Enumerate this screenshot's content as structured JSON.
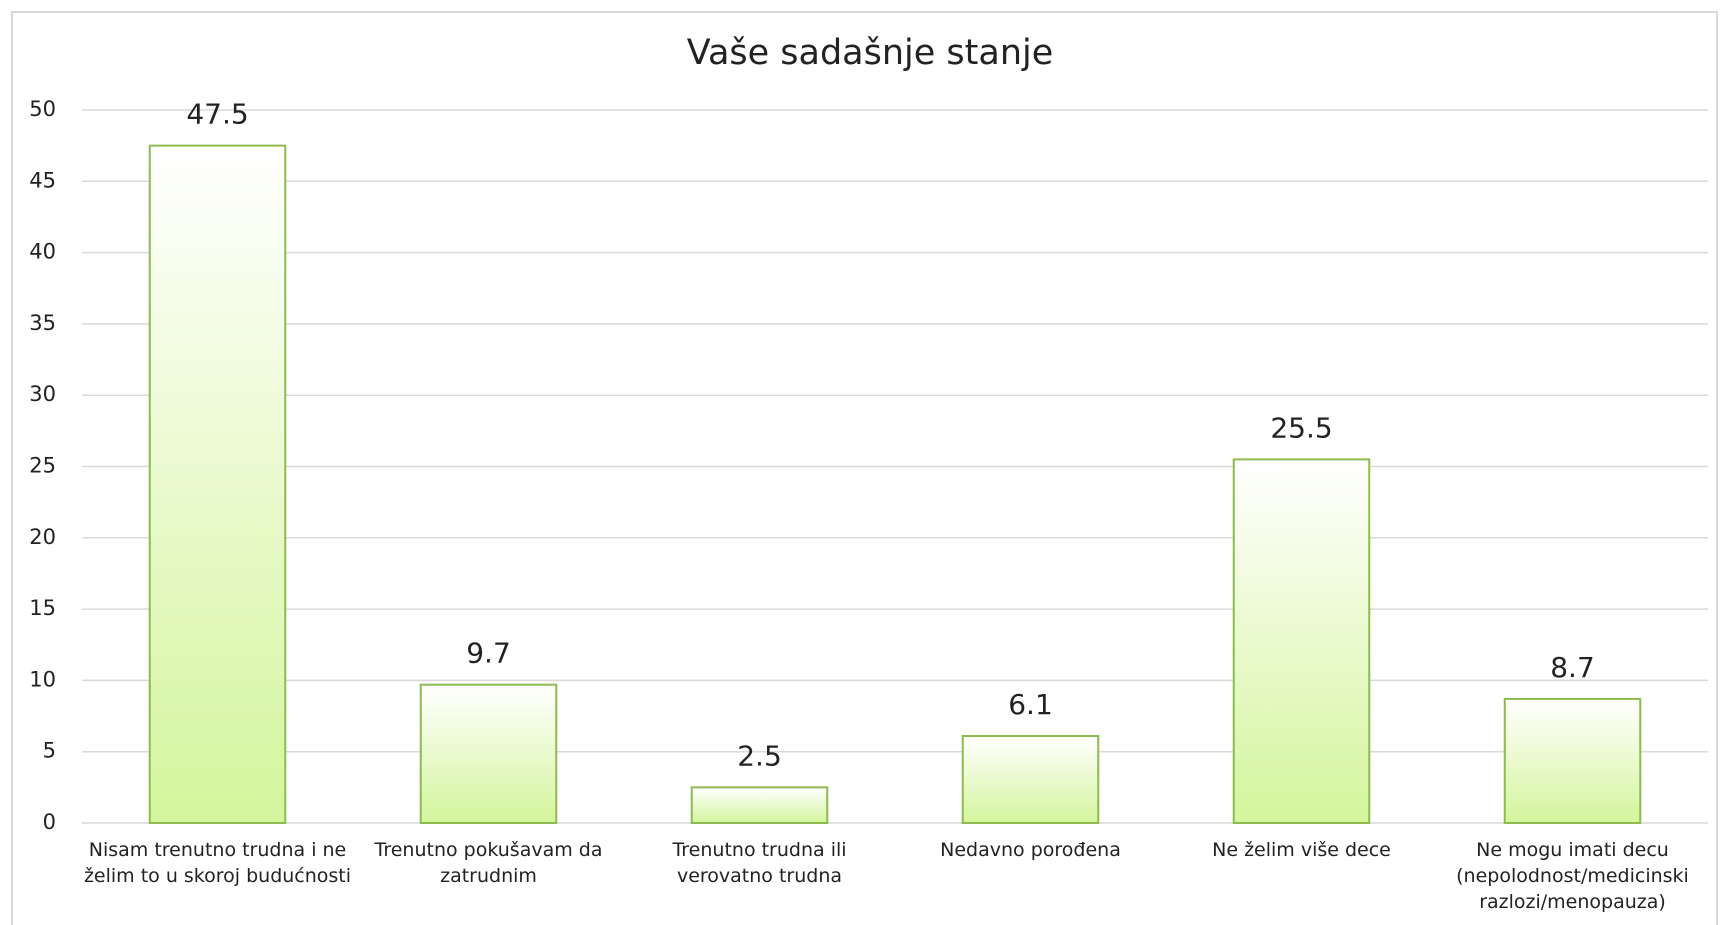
{
  "chart_data": {
    "type": "bar",
    "title": "Vaše sadašnje stanje",
    "categories": [
      "Nisam trenutno trudna i ne želim to u skoroj budućnosti",
      "Trenutno pokušavam da zatrudnim",
      "Trenutno trudna ili verovatno trudna",
      "Nedavno porođena",
      "Ne želim više dece",
      "Ne mogu imati decu (nepolodnost/medicinski razlozi/menopauza)"
    ],
    "values": [
      47.5,
      9.7,
      2.5,
      6.1,
      25.5,
      8.7
    ],
    "color": "#d4f59c",
    "ylim": [
      0,
      50
    ],
    "yticks": [
      0,
      5,
      10,
      15,
      20,
      25,
      30,
      35,
      40,
      45,
      50
    ],
    "grid": true
  }
}
